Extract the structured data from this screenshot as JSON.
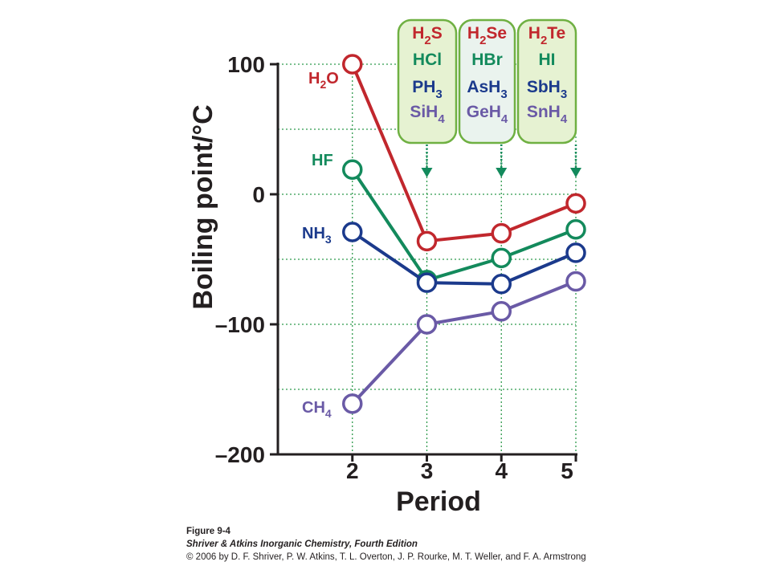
{
  "chart_data": {
    "type": "line",
    "xlabel": "Period",
    "ylabel": "Boiling point/°C",
    "x": [
      2,
      3,
      4,
      5
    ],
    "x_ticks": [
      "2",
      "3",
      "4",
      "5"
    ],
    "xlim": [
      1,
      5
    ],
    "ylim": [
      -200,
      100
    ],
    "y_ticks": [
      100,
      0,
      -100,
      -200
    ],
    "y_tick_labels": [
      "100",
      "0",
      "–100",
      "–200"
    ],
    "grid": "dotted green at every 50 °C and at each period",
    "series": [
      {
        "group": "group16",
        "color": "#c1272d",
        "label": [
          "H",
          "2",
          "O"
        ],
        "values": [
          100,
          -36,
          -30,
          -7
        ]
      },
      {
        "group": "group17",
        "color": "#138a5c",
        "label": [
          "HF"
        ],
        "values": [
          19,
          -66,
          -49,
          -27
        ]
      },
      {
        "group": "group15",
        "color": "#1b3a8c",
        "label": [
          "NH",
          "3"
        ],
        "values": [
          -29,
          -68,
          -69,
          -45
        ]
      },
      {
        "group": "group14",
        "color": "#6a5aa6",
        "label": [
          "CH",
          "4"
        ],
        "values": [
          -161,
          -100,
          -90,
          -67
        ]
      }
    ],
    "annotations": [
      {
        "period": 3,
        "bg": "#e6f2d2",
        "lines": [
          {
            "color": "#c1272d",
            "parts": [
              "H",
              "2",
              "S"
            ]
          },
          {
            "color": "#138a5c",
            "parts": [
              "HCl"
            ]
          },
          {
            "color": "#1b3a8c",
            "parts": [
              "PH",
              "3"
            ]
          },
          {
            "color": "#6a5aa6",
            "parts": [
              "SiH",
              "4"
            ]
          }
        ]
      },
      {
        "period": 4,
        "bg": "#eaf3ee",
        "lines": [
          {
            "color": "#c1272d",
            "parts": [
              "H",
              "2",
              "Se"
            ]
          },
          {
            "color": "#138a5c",
            "parts": [
              "HBr"
            ]
          },
          {
            "color": "#1b3a8c",
            "parts": [
              "AsH",
              "3"
            ]
          },
          {
            "color": "#6a5aa6",
            "parts": [
              "GeH",
              "4"
            ]
          }
        ]
      },
      {
        "period": 5,
        "bg": "#e6f2d2",
        "lines": [
          {
            "color": "#c1272d",
            "parts": [
              "H",
              "2",
              "Te"
            ]
          },
          {
            "color": "#138a5c",
            "parts": [
              "HI"
            ]
          },
          {
            "color": "#1b3a8c",
            "parts": [
              "SbH",
              "3"
            ]
          },
          {
            "color": "#6a5aa6",
            "parts": [
              "SnH",
              "4"
            ]
          }
        ]
      }
    ]
  },
  "caption": {
    "figure": "Figure 9-4",
    "book": "Shriver & Atkins Inorganic Chemistry, Fourth Edition",
    "copyright": "© 2006 by D. F. Shriver, P. W. Atkins, T. L. Overton, J. P. Rourke, M. T. Weller, and F. A. Armstrong"
  }
}
